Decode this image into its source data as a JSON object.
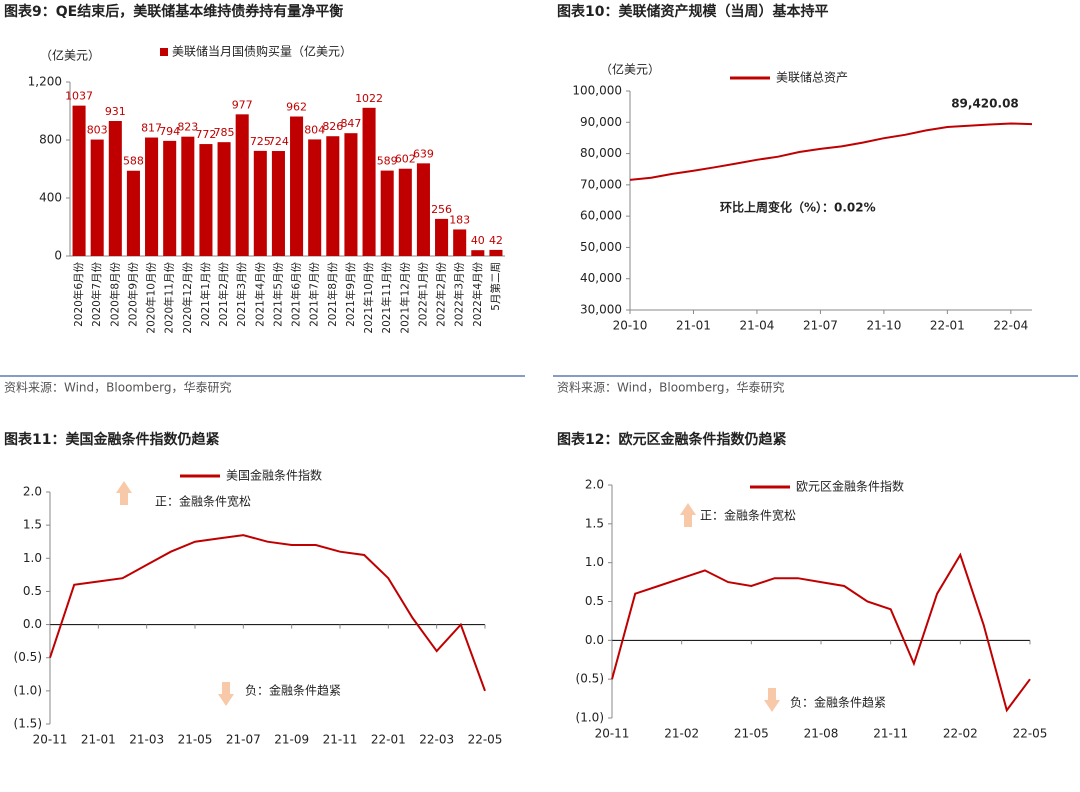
{
  "chart_data": [
    {
      "type": "bar",
      "title": "图表9：QE结束后，美联储基本维持债券持有量净平衡",
      "unit": "（亿美元）",
      "categories": [
        "2020年6月份",
        "2020年7月份",
        "2020年8月份",
        "2020年9月份",
        "2020年10月份",
        "2020年11月份",
        "2020年12月份",
        "2021年1月份",
        "2021年2月份",
        "2021年3月份",
        "2021年4月份",
        "2021年5月份",
        "2021年6月份",
        "2021年7月份",
        "2021年8月份",
        "2021年9月份",
        "2021年10月份",
        "2021年11月份",
        "2021年12月份",
        "2022年1月份",
        "2022年2月份",
        "2022年3月份",
        "2022年4月份",
        "5月第二周"
      ],
      "series": [
        {
          "name": "美联储当月国债购买量（亿美元）",
          "color": "#c00000",
          "values": [
            1037,
            803,
            931,
            588,
            817,
            794,
            823,
            772,
            785,
            977,
            725,
            724,
            962,
            804,
            826,
            847,
            1022,
            589,
            602,
            639,
            256,
            183,
            40,
            42
          ]
        }
      ],
      "ylim": [
        0,
        1200
      ],
      "yticks": [
        0,
        400,
        800,
        {
          "value": 1200,
          "label": "1,200"
        }
      ],
      "source": "资料来源：Wind，Bloomberg，华泰研究"
    },
    {
      "type": "line",
      "title": "图表10：美联储资产规模（当周）基本持平",
      "unit": "（亿美元）",
      "x": [
        "20-10",
        "20-11",
        "20-12",
        "21-01",
        "21-02",
        "21-03",
        "21-04",
        "21-05",
        "21-06",
        "21-07",
        "21-08",
        "21-09",
        "21-10",
        "21-11",
        "21-12",
        "22-01",
        "22-02",
        "22-03",
        "22-04",
        "22-05"
      ],
      "series": [
        {
          "name": "美联储总资产",
          "color": "#c00000",
          "values": [
            71600,
            72300,
            73500,
            74500,
            75600,
            76800,
            78000,
            79000,
            80500,
            81500,
            82300,
            83500,
            84900,
            86000,
            87400,
            88500,
            88900,
            89300,
            89600,
            89420.08
          ]
        }
      ],
      "end_label": "89,420.08",
      "annotations": [
        "环比上周变化（%）：0.02%"
      ],
      "ylim": [
        30000,
        100000
      ],
      "yticks": [
        {
          "value": 30000,
          "label": "30,000"
        },
        {
          "value": 40000,
          "label": "40,000"
        },
        {
          "value": 50000,
          "label": "50,000"
        },
        {
          "value": 60000,
          "label": "60,000"
        },
        {
          "value": 70000,
          "label": "70,000"
        },
        {
          "value": 80000,
          "label": "80,000"
        },
        {
          "value": 90000,
          "label": "90,000"
        },
        {
          "value": 100000,
          "label": "100,000"
        }
      ],
      "xticks": [
        "20-10",
        "21-01",
        "21-04",
        "21-07",
        "21-10",
        "22-01",
        "22-04"
      ],
      "source": "资料来源：Wind，Bloomberg，华泰研究"
    },
    {
      "type": "line",
      "title": "图表11：美国金融条件指数仍趋紧",
      "x": [
        "20-11",
        "20-12",
        "21-01",
        "21-02",
        "21-03",
        "21-04",
        "21-05",
        "21-06",
        "21-07",
        "21-08",
        "21-09",
        "21-10",
        "21-11",
        "21-12",
        "22-01",
        "22-02",
        "22-03",
        "22-04",
        "22-05"
      ],
      "series": [
        {
          "name": "美国金融条件指数",
          "color": "#c00000",
          "values": [
            -0.5,
            0.6,
            0.65,
            0.7,
            0.9,
            1.1,
            1.25,
            1.3,
            1.35,
            1.25,
            1.2,
            1.2,
            1.1,
            1.05,
            0.7,
            0.1,
            -0.4,
            0.0,
            -1.0
          ]
        }
      ],
      "annotations": [
        "正：金融条件宽松",
        "负：金融条件趋紧"
      ],
      "ylim": [
        -1.5,
        2.0
      ],
      "yticks": [
        {
          "value": -1.5,
          "label": "(1.5)"
        },
        {
          "value": -1.0,
          "label": "(1.0)"
        },
        {
          "value": -0.5,
          "label": "(0.5)"
        },
        {
          "value": 0,
          "label": "0.0"
        },
        0.5,
        {
          "value": 1,
          "label": "1.0"
        },
        1.5,
        {
          "value": 2,
          "label": "2.0"
        }
      ],
      "xticks": [
        "20-11",
        "21-01",
        "21-03",
        "21-05",
        "21-07",
        "21-09",
        "21-11",
        "22-01",
        "22-03",
        "22-05"
      ],
      "source": "资料来源：Wind，Bloomberg，华泰研究"
    },
    {
      "type": "line",
      "title": "图表12：欧元区金融条件指数仍趋紧",
      "x": [
        "20-11",
        "20-12",
        "21-01",
        "21-02",
        "21-03",
        "21-04",
        "21-05",
        "21-06",
        "21-07",
        "21-08",
        "21-09",
        "21-10",
        "21-11",
        "21-12",
        "22-01",
        "22-02",
        "22-03",
        "22-04",
        "22-05"
      ],
      "series": [
        {
          "name": "欧元区金融条件指数",
          "color": "#c00000",
          "values": [
            -0.5,
            0.6,
            0.7,
            0.8,
            0.9,
            0.75,
            0.7,
            0.8,
            0.8,
            0.75,
            0.7,
            0.5,
            0.4,
            -0.3,
            0.6,
            1.1,
            0.2,
            -0.9,
            -0.5
          ]
        }
      ],
      "annotations": [
        "正：金融条件宽松",
        "负：金融条件趋紧"
      ],
      "ylim": [
        -1.0,
        2.0
      ],
      "yticks": [
        {
          "value": -1.0,
          "label": "(1.0)"
        },
        {
          "value": -0.5,
          "label": "(0.5)"
        },
        {
          "value": 0,
          "label": "0.0"
        },
        0.5,
        {
          "value": 1,
          "label": "1.0"
        },
        1.5,
        {
          "value": 2,
          "label": "2.0"
        }
      ],
      "xticks": [
        "20-11",
        "21-02",
        "21-05",
        "21-08",
        "21-11",
        "22-02",
        "22-05"
      ],
      "source": "资料来源：Wind，Bloomberg，华泰研究"
    }
  ]
}
